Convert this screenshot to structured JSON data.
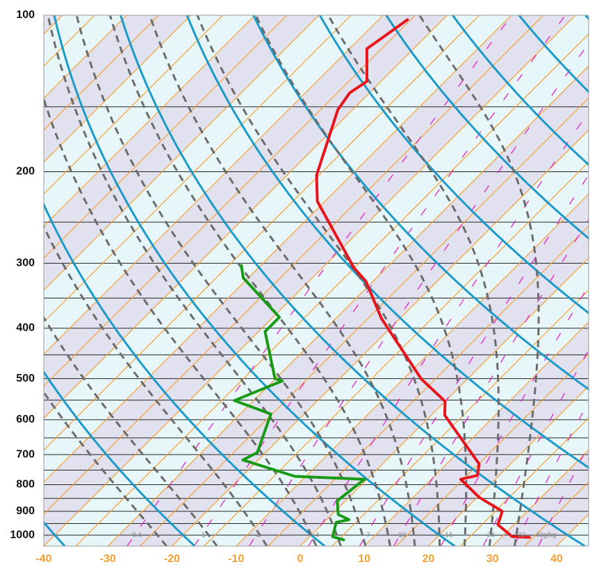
{
  "chart_data": {
    "type": "skewt",
    "ylog": true,
    "ylim": [
      1050,
      100
    ],
    "yticks": [
      100,
      200,
      300,
      400,
      500,
      600,
      700,
      800,
      900,
      1000
    ],
    "isobars": [
      150,
      250,
      350,
      450,
      550,
      650,
      750,
      850,
      950
    ],
    "xlim": [
      -40,
      45
    ],
    "xticks": [
      -40,
      -30,
      -20,
      -10,
      0,
      10,
      20,
      30,
      40
    ],
    "isotherms": [
      -130,
      -125,
      -120,
      -115,
      -110,
      -105,
      -100,
      -95,
      -90,
      -85,
      -80,
      -75,
      -70,
      -65,
      -60,
      -55,
      -50,
      -45,
      -40,
      -35,
      -30,
      -25,
      -20,
      -15,
      -10,
      -5,
      0,
      5,
      10,
      15,
      20,
      25,
      30,
      35,
      40,
      45,
      50
    ],
    "band_colors": [
      "#e1e1ef",
      "#e7f6f8"
    ],
    "isotherm_color": "#f5a030",
    "dry_adiabats": [
      -60,
      -40,
      -20,
      0,
      20,
      40,
      60,
      80,
      100,
      120,
      140,
      160,
      180,
      200
    ],
    "dry_adiabat_color": "#1b9ac9",
    "moist_adiabats": [
      -24,
      -16,
      -8,
      0,
      4,
      8,
      12,
      16,
      20,
      24,
      28,
      32
    ],
    "moist_adiabat_color": "#6b6b6b",
    "mixing_ratios": [
      0.4,
      1,
      2,
      4,
      7,
      10,
      16,
      24,
      32,
      40
    ],
    "mixing_ratio_labels": [
      "0.4",
      "1",
      "2",
      "4",
      "7",
      "10",
      "16",
      "24",
      "32",
      "40g/kg"
    ],
    "mixing_ratio_color": "#e622c8",
    "series": [
      {
        "color": "#e8141c",
        "pressure": [
          1010,
          1007,
          955,
          900,
          846,
          781,
          768,
          730,
          588,
          553,
          501,
          383,
          325,
          306,
          228,
          203,
          152,
          141,
          134,
          116,
          102
        ],
        "values": [
          34.4,
          31.6,
          27.5,
          26.1,
          20.3,
          14.6,
          16.6,
          15.1,
          2.1,
          0.0,
          -7.2,
          -22.9,
          -31.1,
          -35.1,
          -51.2,
          -55.4,
          -62.3,
          -63.1,
          -62.2,
          -67.3,
          -65.5
        ]
      },
      {
        "color": "#179a14",
        "pressure": [
          1021,
          1007,
          945,
          934,
          913,
          859,
          781,
          771,
          717,
          694,
          585,
          551,
          505,
          500,
          406,
          381,
          320,
          303
        ],
        "values": [
          5.8,
          3.6,
          1.9,
          3.5,
          1.0,
          -1.3,
          -0.4,
          -11.7,
          -22.4,
          -21.3,
          -25.2,
          -33.0,
          -28.6,
          -30.1,
          -39.0,
          -39.0,
          -50.8,
          -53.0
        ]
      }
    ]
  }
}
